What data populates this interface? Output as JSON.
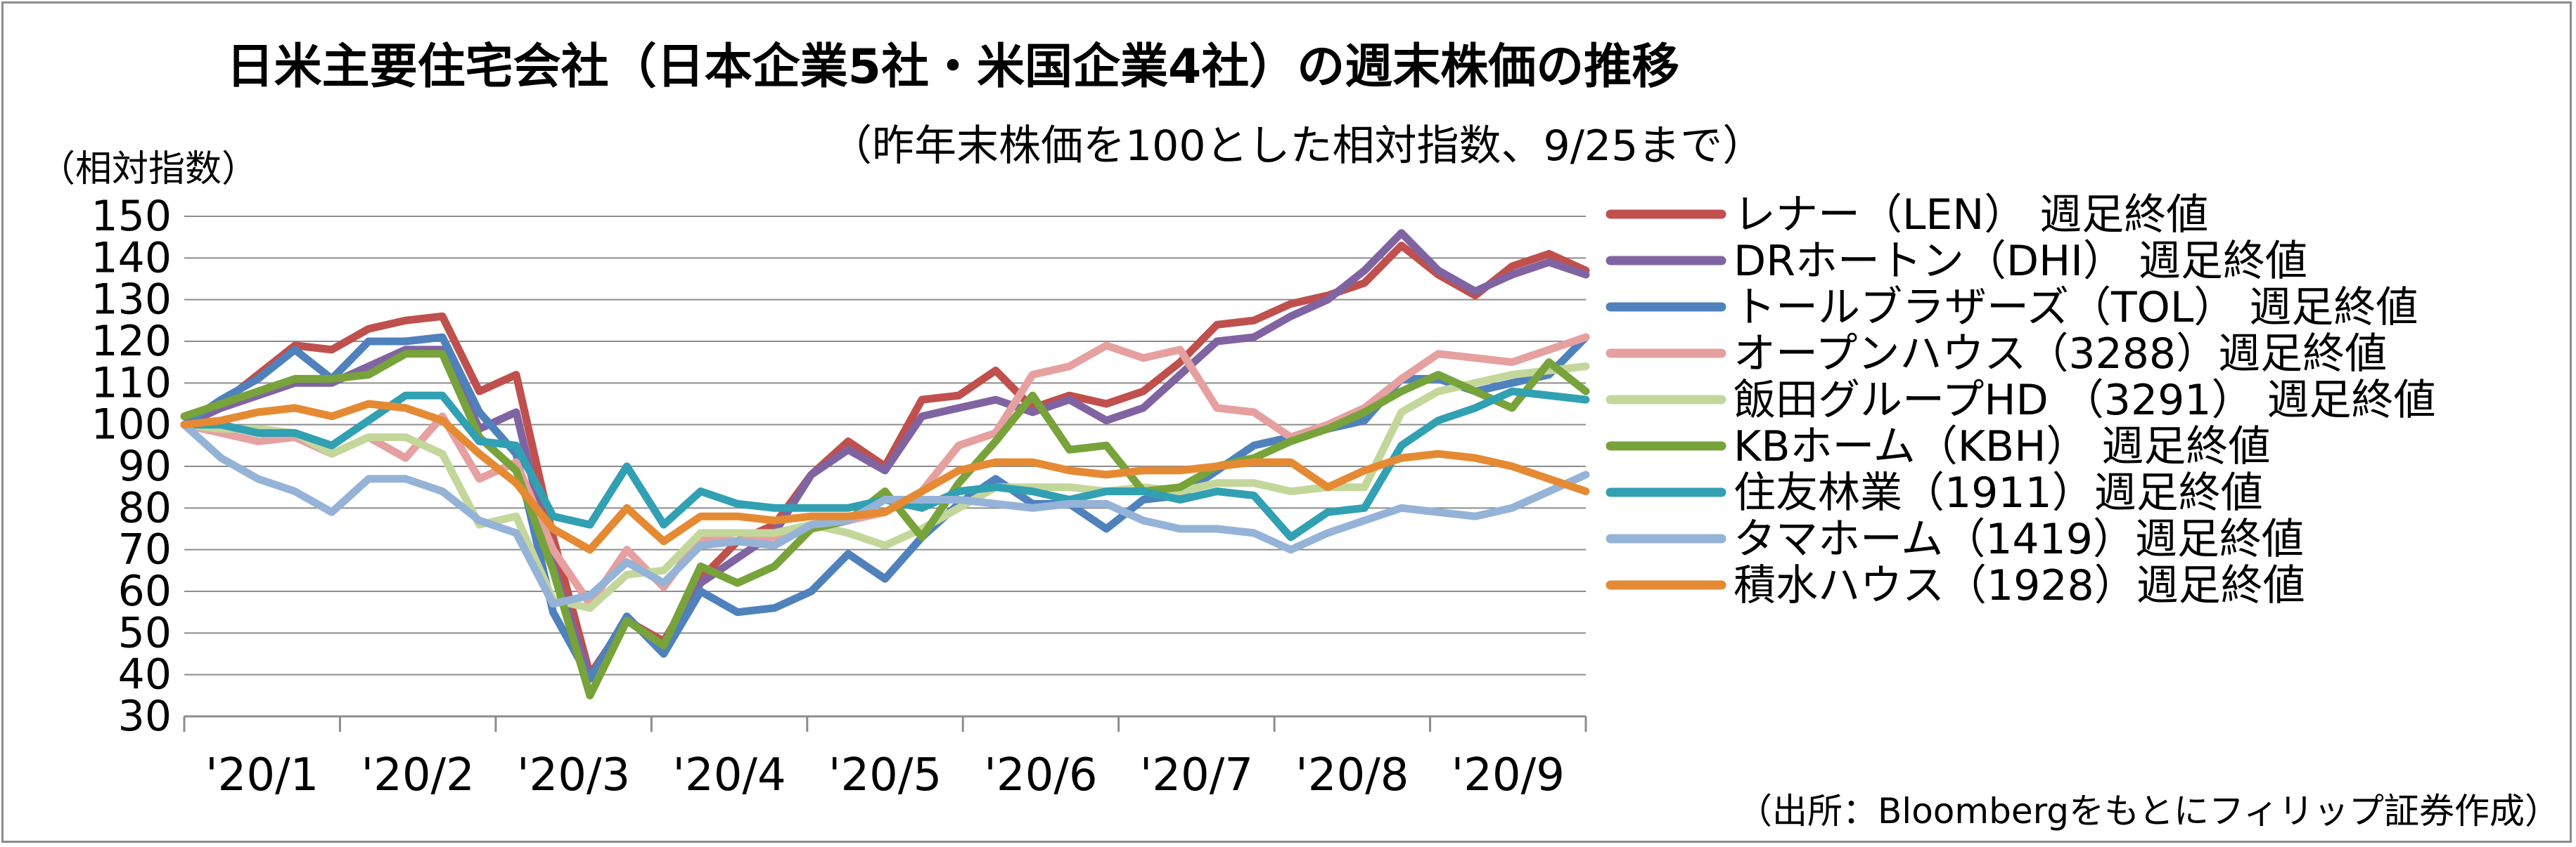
{
  "chart_data": {
    "type": "line",
    "title": "日米主要住宅会社（日本企業5社・米国企業4社）の週末株価の推移",
    "subtitle": "（昨年末株価を100とした相対指数、9/25まで）",
    "ylabel": "（相対指数）",
    "source": "（出所：Bloombergをもとにフィリップ証券作成）",
    "ylim": [
      30,
      150
    ],
    "yticks": [
      "30",
      "40",
      "50",
      "60",
      "70",
      "80",
      "90",
      "100",
      "110",
      "120",
      "130",
      "140",
      "150"
    ],
    "xticks": [
      "'20/1",
      "'20/2",
      "'20/3",
      "'20/4",
      "'20/5",
      "'20/6",
      "'20/7",
      "'20/8",
      "'20/9"
    ],
    "x_weeks": 39,
    "grid": true,
    "legend_position": "right",
    "series": [
      {
        "name": "レナー（LEN） 週足終値",
        "color": "#c0504d",
        "values": [
          100,
          105,
          112,
          119,
          118,
          123,
          125,
          126,
          108,
          112,
          73,
          40,
          53,
          48,
          63,
          72,
          76,
          88,
          96,
          90,
          106,
          107,
          113,
          104,
          107,
          105,
          108,
          115,
          124,
          125,
          129,
          131,
          134,
          143,
          136,
          131,
          138,
          141,
          137
        ]
      },
      {
        "name": "DRホートン（DHI） 週足終値",
        "color": "#8064a2",
        "values": [
          100,
          104,
          107,
          110,
          110,
          114,
          118,
          118,
          99,
          103,
          66,
          39,
          53,
          47,
          62,
          68,
          74,
          88,
          94,
          89,
          102,
          104,
          106,
          103,
          106,
          101,
          104,
          112,
          120,
          121,
          126,
          130,
          137,
          146,
          137,
          132,
          136,
          139,
          136
        ]
      },
      {
        "name": "トールブラザーズ（TOL） 週足終値",
        "color": "#4f81bd",
        "values": [
          100,
          106,
          111,
          118,
          111,
          120,
          120,
          121,
          103,
          93,
          55,
          39,
          54,
          45,
          60,
          55,
          56,
          60,
          69,
          63,
          73,
          81,
          87,
          81,
          81,
          75,
          82,
          83,
          89,
          95,
          97,
          99,
          101,
          111,
          111,
          108,
          110,
          112,
          121
        ]
      },
      {
        "name": "オープンハウス（3288）週足終値",
        "color": "#e6a0a0",
        "values": [
          100,
          98,
          96,
          97,
          93,
          97,
          92,
          102,
          87,
          91,
          70,
          57,
          70,
          61,
          73,
          72,
          73,
          76,
          77,
          79,
          84,
          95,
          98,
          112,
          114,
          119,
          116,
          118,
          104,
          103,
          97,
          100,
          104,
          111,
          117,
          116,
          115,
          118,
          121
        ]
      },
      {
        "name": "飯田グループHD （3291） 週足終値",
        "color": "#c4d79b",
        "values": [
          100,
          99,
          99,
          98,
          93,
          97,
          97,
          93,
          76,
          78,
          58,
          56,
          64,
          65,
          74,
          74,
          74,
          76,
          74,
          71,
          75,
          80,
          85,
          85,
          85,
          84,
          85,
          84,
          86,
          86,
          84,
          85,
          85,
          103,
          108,
          110,
          112,
          113,
          114
        ]
      },
      {
        "name": "KBホーム（KBH） 週足終値",
        "color": "#77a33a",
        "values": [
          102,
          105,
          108,
          111,
          111,
          112,
          117,
          117,
          97,
          89,
          65,
          35,
          53,
          47,
          66,
          62,
          66,
          75,
          77,
          84,
          73,
          86,
          96,
          107,
          94,
          95,
          84,
          85,
          90,
          92,
          96,
          99,
          103,
          108,
          112,
          108,
          104,
          115,
          108
        ]
      },
      {
        "name": "住友林業（1911）週足終値",
        "color": "#31a0b3",
        "values": [
          100,
          100,
          98,
          98,
          95,
          101,
          107,
          107,
          96,
          95,
          78,
          76,
          90,
          76,
          84,
          81,
          80,
          80,
          80,
          82,
          80,
          84,
          85,
          84,
          82,
          84,
          84,
          82,
          84,
          83,
          73,
          79,
          80,
          95,
          101,
          104,
          108,
          107,
          106
        ]
      },
      {
        "name": "タマホーム（1419）週足終値",
        "color": "#95b3d7",
        "values": [
          100,
          92,
          87,
          84,
          79,
          87,
          87,
          84,
          77,
          74,
          57,
          59,
          67,
          62,
          71,
          72,
          71,
          76,
          77,
          82,
          82,
          82,
          81,
          80,
          81,
          81,
          77,
          75,
          75,
          74,
          70,
          74,
          77,
          80,
          79,
          78,
          80,
          84,
          88
        ]
      },
      {
        "name": "積水ハウス（1928）週足終値",
        "color": "#e58a33",
        "values": [
          100,
          101,
          103,
          104,
          102,
          105,
          104,
          101,
          93,
          86,
          75,
          70,
          80,
          72,
          78,
          78,
          77,
          78,
          78,
          79,
          84,
          89,
          91,
          91,
          89,
          88,
          89,
          89,
          90,
          91,
          91,
          85,
          89,
          92,
          93,
          92,
          90,
          87,
          84
        ]
      }
    ]
  }
}
